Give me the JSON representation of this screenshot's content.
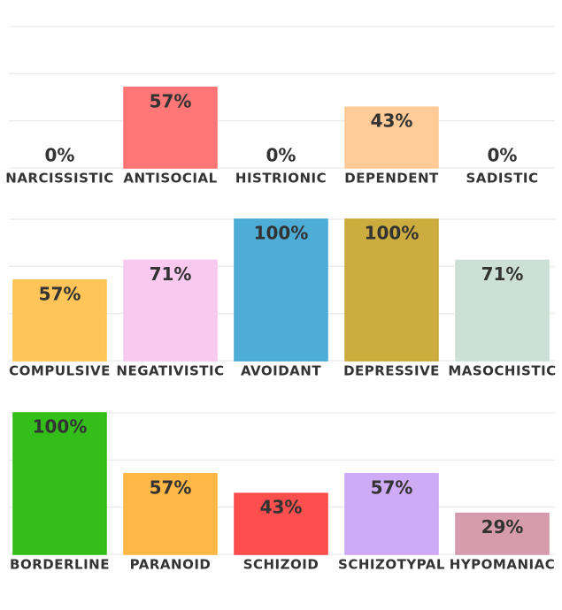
{
  "chart_data": [
    {
      "type": "bar",
      "categories": [
        "NARCISSISTIC",
        "ANTISOCIAL",
        "HISTRIONIC",
        "DEPENDENT",
        "SADISTIC"
      ],
      "values": [
        0,
        57,
        0,
        43,
        0
      ],
      "value_labels": [
        "0%",
        "57%",
        "0%",
        "43%",
        "0%"
      ],
      "colors": [
        "#4bb8c4",
        "#ff6f6f",
        "#8fd06b",
        "#ffc894",
        "#9b59d6"
      ],
      "ylim": [
        0,
        100
      ],
      "yticks": [
        0,
        33.3,
        66.7,
        100
      ],
      "grid": true
    },
    {
      "type": "bar",
      "categories": [
        "COMPULSIVE",
        "NEGATIVISTIC",
        "AVOIDANT",
        "DEPRESSIVE",
        "MASOCHISTIC"
      ],
      "values": [
        57,
        71,
        100,
        100,
        71
      ],
      "value_labels": [
        "57%",
        "71%",
        "100%",
        "100%",
        "71%"
      ],
      "colors": [
        "#ffc24f",
        "#f9c6ef",
        "#45a9d4",
        "#c9a735",
        "#c9ded5"
      ],
      "ylim": [
        0,
        100
      ],
      "yticks": [
        0,
        33.3,
        66.7,
        100
      ],
      "grid": true
    },
    {
      "type": "bar",
      "categories": [
        "BORDERLINE",
        "PARANOID",
        "SCHIZOID",
        "SCHIZOTYPAL",
        "HYPOMANIAC"
      ],
      "values": [
        100,
        57,
        43,
        57,
        29
      ],
      "value_labels": [
        "100%",
        "57%",
        "43%",
        "57%",
        "29%"
      ],
      "colors": [
        "#28bb0e",
        "#ffb43c",
        "#ff4545",
        "#cca6f5",
        "#d497a9"
      ],
      "ylim": [
        0,
        100
      ],
      "yticks": [
        0,
        33.3,
        66.7,
        100
      ],
      "grid": true
    }
  ]
}
